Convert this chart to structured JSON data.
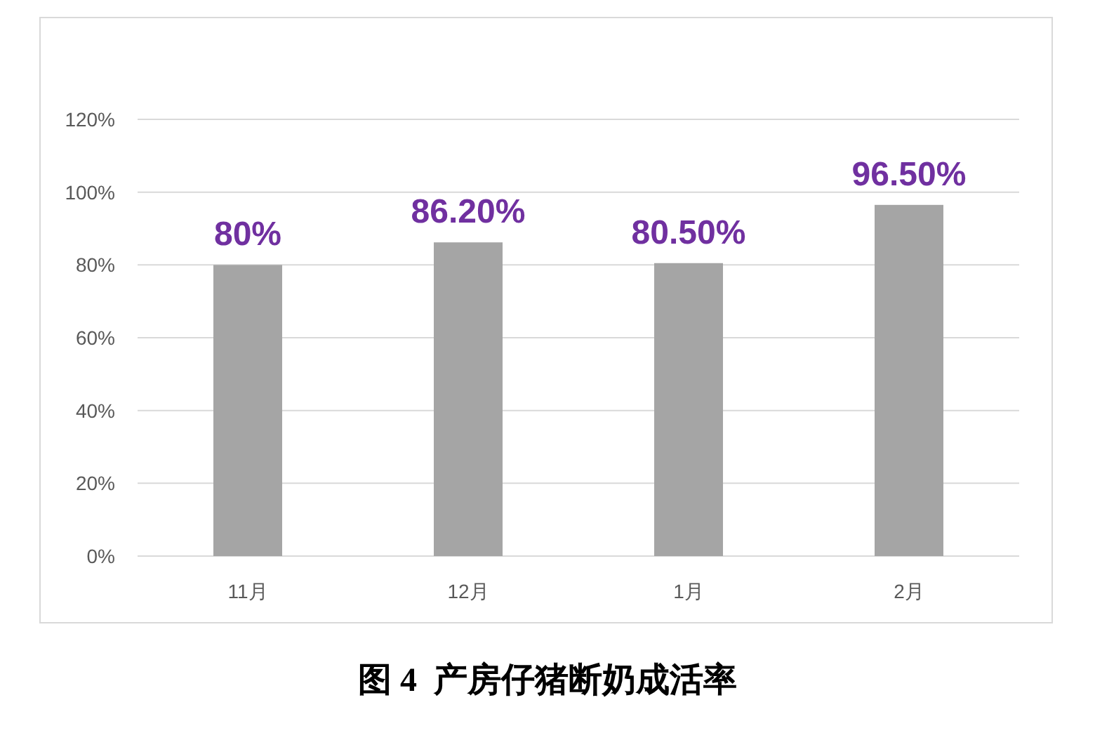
{
  "chart_data": {
    "type": "bar",
    "title": "图 4  产房仔猪断奶成活率",
    "categories": [
      "11月",
      "12月",
      "1月",
      "2月"
    ],
    "values": [
      80,
      86.2,
      80.5,
      96.5
    ],
    "value_labels": [
      "80%",
      "86.20%",
      "80.50%",
      "96.50%"
    ],
    "color": "#a5a5a5",
    "ylim": [
      0,
      120
    ],
    "yticks": [
      {
        "value": 0,
        "label": "0%"
      },
      {
        "value": 20,
        "label": "20%"
      },
      {
        "value": 40,
        "label": "40%"
      },
      {
        "value": 60,
        "label": "60%"
      },
      {
        "value": 80,
        "label": "80%"
      },
      {
        "value": 100,
        "label": "100%"
      },
      {
        "value": 120,
        "label": "120%"
      }
    ],
    "grid": "y"
  }
}
